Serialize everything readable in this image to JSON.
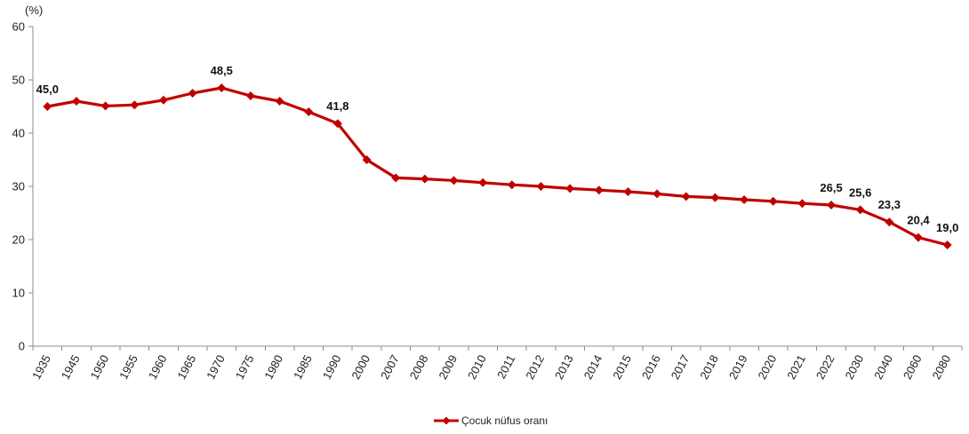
{
  "chart_data": {
    "type": "line",
    "title": "",
    "xlabel": "",
    "ylabel": "(%)",
    "ylim": [
      0,
      60
    ],
    "yticks": [
      0,
      10,
      20,
      30,
      40,
      50,
      60
    ],
    "grid": false,
    "legend_position": "bottom-center",
    "categories": [
      "1935",
      "1945",
      "1950",
      "1955",
      "1960",
      "1965",
      "1970",
      "1975",
      "1980",
      "1985",
      "1990",
      "2000",
      "2007",
      "2008",
      "2009",
      "2010",
      "2011",
      "2012",
      "2013",
      "2014",
      "2015",
      "2016",
      "2017",
      "2018",
      "2019",
      "2020",
      "2021",
      "2022",
      "2030",
      "2040",
      "2060",
      "2080"
    ],
    "series": [
      {
        "name": "Çocuk nüfus oranı",
        "color": "#c00000",
        "values": [
          45.0,
          46.0,
          45.1,
          45.3,
          46.2,
          47.5,
          48.5,
          47.0,
          46.0,
          44.0,
          41.8,
          35.0,
          31.6,
          31.4,
          31.1,
          30.7,
          30.3,
          30.0,
          29.6,
          29.3,
          29.0,
          28.6,
          28.1,
          27.9,
          27.5,
          27.2,
          26.8,
          26.5,
          25.6,
          23.3,
          20.4,
          19.0
        ]
      }
    ],
    "data_labels": [
      {
        "category": "1935",
        "text": "45,0"
      },
      {
        "category": "1970",
        "text": "48,5"
      },
      {
        "category": "1990",
        "text": "41,8"
      },
      {
        "category": "2022",
        "text": "26,5"
      },
      {
        "category": "2030",
        "text": "25,6"
      },
      {
        "category": "2040",
        "text": "23,3"
      },
      {
        "category": "2060",
        "text": "20,4"
      },
      {
        "category": "2080",
        "text": "19,0"
      }
    ]
  }
}
